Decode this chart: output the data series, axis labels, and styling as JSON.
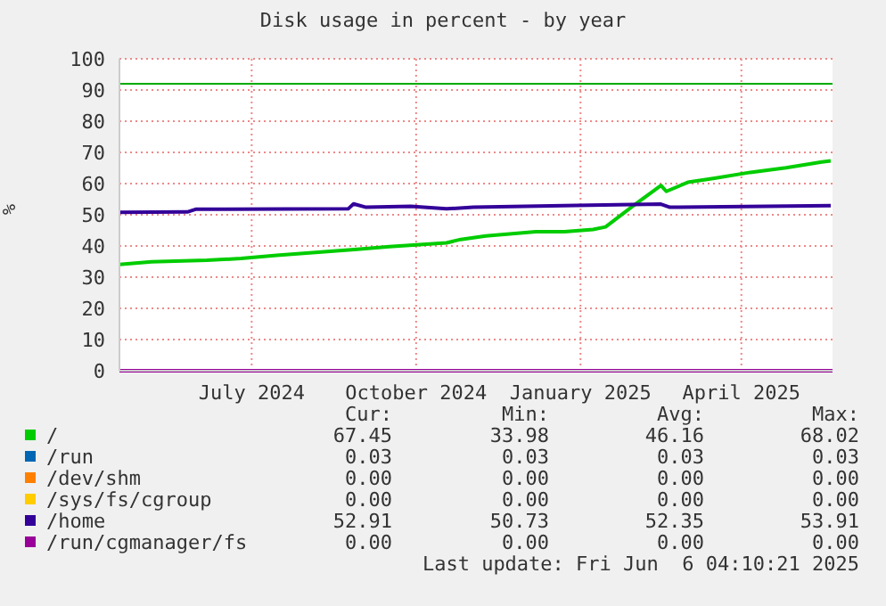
{
  "chart_data": {
    "type": "line",
    "title": "Disk usage in percent - by year",
    "ylabel": "%",
    "xlim": [
      "2024-05-03",
      "2025-06-06"
    ],
    "xticks": [
      {
        "value": "2024-07-16",
        "label": "July 2024"
      },
      {
        "value": "2024-10-16",
        "label": "October 2024"
      },
      {
        "value": "2025-01-16",
        "label": "January 2025"
      },
      {
        "value": "2025-04-16",
        "label": "April 2025"
      }
    ],
    "ylim": [
      0,
      100
    ],
    "yticks": [
      0,
      10,
      20,
      30,
      40,
      50,
      60,
      70,
      80,
      90,
      100
    ],
    "grid": true,
    "legend": "bottom",
    "line_style": "solid",
    "marker": "none",
    "ref_lines": [
      {
        "axis": "y",
        "value": 92,
        "color": "#00aa00"
      }
    ],
    "series": [
      {
        "name": "/",
        "color": "#00cc00",
        "x": [
          "2024-05-03",
          "2024-05-21",
          "2024-06-21",
          "2024-07-10",
          "2024-07-30",
          "2024-08-24",
          "2024-09-13",
          "2024-10-01",
          "2024-10-18",
          "2024-11-02",
          "2024-11-10",
          "2024-11-24",
          "2024-12-22",
          "2025-01-07",
          "2025-01-23",
          "2025-01-30",
          "2025-02-15",
          "2025-03-02",
          "2025-03-05",
          "2025-03-17",
          "2025-04-01",
          "2025-04-21",
          "2025-05-11",
          "2025-05-31",
          "2025-06-05"
        ],
        "values": [
          34.1,
          34.9,
          35.4,
          36.0,
          37.0,
          38.1,
          38.9,
          39.8,
          40.4,
          41.0,
          42.1,
          43.2,
          44.6,
          44.6,
          45.3,
          46.1,
          53.1,
          59.4,
          57.5,
          60.4,
          61.7,
          63.6,
          65.1,
          66.9,
          67.3
        ]
      },
      {
        "name": "/run",
        "color": "#0066b3"
      },
      {
        "name": "/dev/shm",
        "color": "#ff8000"
      },
      {
        "name": "/sys/fs/cgroup",
        "color": "#ffcc00"
      },
      {
        "name": "/home",
        "color": "#330099",
        "x": [
          "2024-05-03",
          "2024-06-10",
          "2024-06-15",
          "2024-09-08",
          "2024-09-11",
          "2024-09-18",
          "2024-10-13",
          "2024-11-02",
          "2024-11-17",
          "2025-01-21",
          "2025-03-02",
          "2025-03-07",
          "2025-06-05"
        ],
        "values": [
          50.8,
          50.9,
          51.8,
          51.9,
          53.5,
          52.4,
          52.7,
          51.9,
          52.4,
          53.1,
          53.4,
          52.4,
          52.9
        ]
      },
      {
        "name": "/run/cgmanager/fs",
        "color": "#990099",
        "x": [
          "2024-05-03",
          "2025-06-06"
        ],
        "values": [
          0,
          0
        ]
      }
    ],
    "annotations": [
      "Cur:",
      "Min:",
      "Avg:",
      "Max:",
      "67.45",
      "33.98",
      "46.16",
      "68.02",
      "0.03",
      "0.03",
      "0.03",
      "0.03",
      "0.00",
      "0.00",
      "0.00",
      "0.00",
      "0.00",
      "0.00",
      "0.00",
      "0.00",
      "52.91",
      "50.73",
      "52.35",
      "53.91",
      "0.00",
      "0.00",
      "0.00",
      "0.00",
      "Last update: Fri Jun  6 04:10:21 2025"
    ]
  }
}
